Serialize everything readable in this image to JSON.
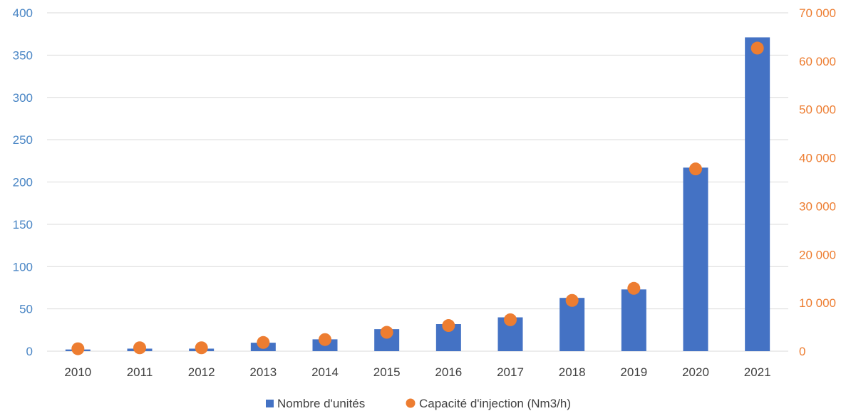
{
  "chart_data": {
    "type": "bar",
    "categories": [
      "2010",
      "2011",
      "2012",
      "2013",
      "2014",
      "2015",
      "2016",
      "2017",
      "2018",
      "2019",
      "2020",
      "2021"
    ],
    "series": [
      {
        "name": "Nombre d'unités",
        "kind": "bar",
        "axis": "left",
        "color": "#4472c4",
        "values": [
          2,
          3,
          3,
          10,
          14,
          26,
          32,
          40,
          63,
          73,
          217,
          371
        ]
      },
      {
        "name": "Capacité d'injection (Nm3/h)",
        "kind": "scatter",
        "axis": "right",
        "color": "#ed7d31",
        "values": [
          500,
          700,
          700,
          1800,
          2400,
          3900,
          5300,
          6500,
          10500,
          13000,
          37700,
          62700
        ]
      }
    ],
    "y_left": {
      "ylim": [
        0,
        400
      ],
      "ticks": [
        0,
        50,
        100,
        150,
        200,
        250,
        300,
        350,
        400
      ],
      "tick_labels": [
        "0",
        "50",
        "100",
        "150",
        "200",
        "250",
        "300",
        "350",
        "400"
      ],
      "color": "#4a86c5"
    },
    "y_right": {
      "ylim": [
        0,
        70000
      ],
      "ticks": [
        0,
        10000,
        20000,
        30000,
        40000,
        50000,
        60000,
        70000
      ],
      "tick_labels": [
        "0",
        "10 000",
        "20 000",
        "30 000",
        "40 000",
        "50 000",
        "60 000",
        "70 000"
      ],
      "color": "#ed7d31"
    },
    "grid": true,
    "legend_position": "bottom-center",
    "title": "",
    "xlabel": "",
    "ylabel": ""
  }
}
